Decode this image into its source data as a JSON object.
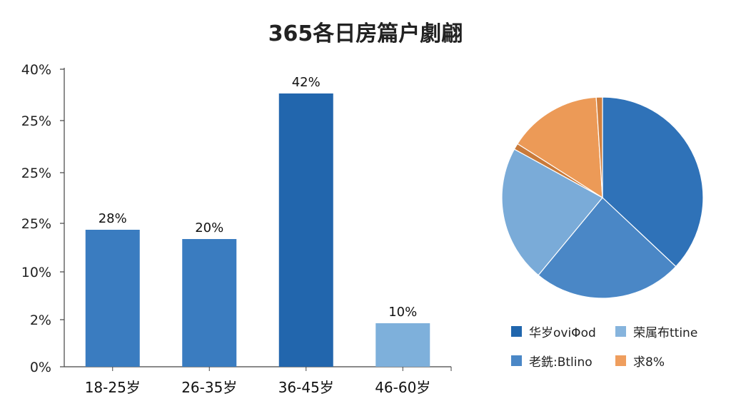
{
  "title": "365各日房篇户劇翩",
  "chart_data": [
    {
      "type": "bar",
      "title": "",
      "categories": [
        "18-25岁",
        "26-35岁",
        "36-45岁",
        "46-60岁"
      ],
      "values": [
        28,
        20,
        42,
        10
      ],
      "data_labels": [
        "28%",
        "20%",
        "42%",
        "10%"
      ],
      "y_tick_labels": [
        "0%",
        "2%",
        "10%",
        "25%",
        "25%",
        "25%",
        "40%"
      ],
      "bar_colors": [
        "#3a7cc0",
        "#3a7cc0",
        "#2266ad",
        "#7eb0db"
      ],
      "grid": false,
      "xlabel": "",
      "ylabel": ""
    },
    {
      "type": "pie",
      "title": "",
      "slices": [
        {
          "value": 37,
          "color": "#2f72b8"
        },
        {
          "value": 24,
          "color": "#4a87c6"
        },
        {
          "value": 22,
          "color": "#7aabd8"
        },
        {
          "value": 1,
          "color": "#c97a3a"
        },
        {
          "value": 15,
          "color": "#ec9a57"
        },
        {
          "value": 1,
          "color": "#d07f3e"
        }
      ],
      "legend_position": "bottom",
      "legend": [
        {
          "label": "华岁oviΦod",
          "color": "#2066ad"
        },
        {
          "label": "荣属布ttine",
          "color": "#86b4dd"
        },
        {
          "label": "老銑:Btlino",
          "color": "#4a87c6"
        },
        {
          "label": "求8%",
          "color": "#ef9e5e"
        }
      ]
    }
  ]
}
